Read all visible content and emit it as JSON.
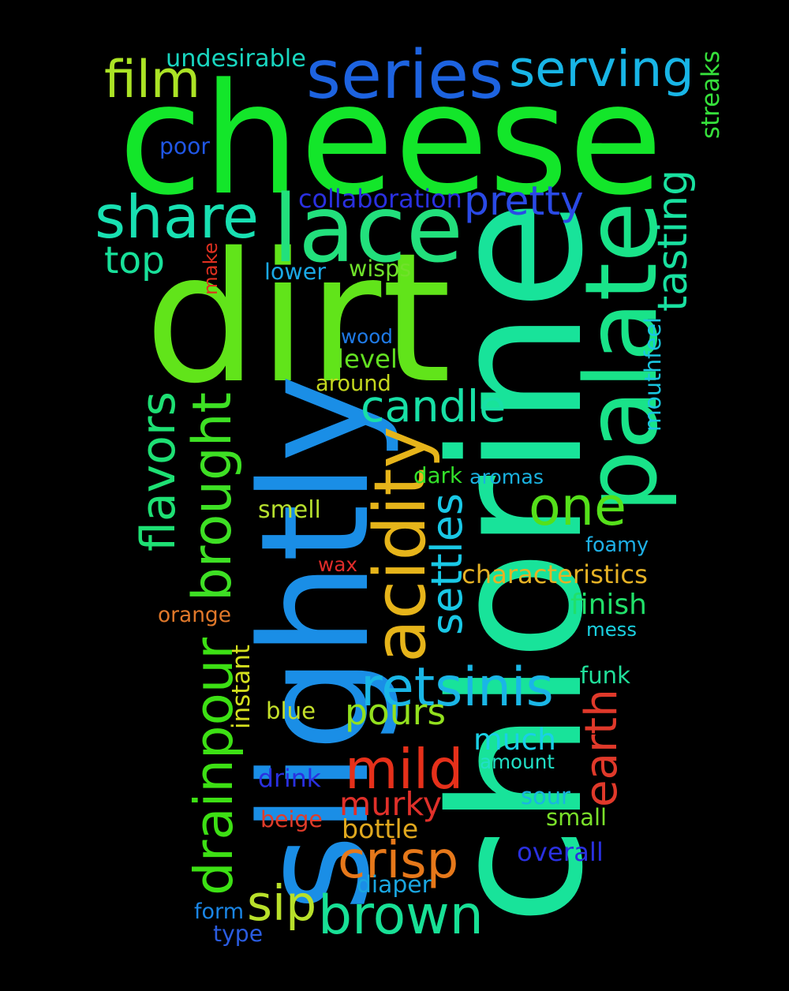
{
  "background": "#000000",
  "words": [
    {
      "text": "cheese",
      "color": "#13e62a"
    },
    {
      "text": "chlorine",
      "color": "#18e39a"
    },
    {
      "text": "dirt",
      "color": "#61e41a"
    },
    {
      "text": "slightly",
      "color": "#1a8ee6"
    },
    {
      "text": "palate",
      "color": "#19e389"
    },
    {
      "text": "lace",
      "color": "#22e07c"
    },
    {
      "text": "series",
      "color": "#1d63e0"
    },
    {
      "text": "serving",
      "color": "#18b5e6"
    },
    {
      "text": "share",
      "color": "#18e0b2"
    },
    {
      "text": "film",
      "color": "#abe325"
    },
    {
      "text": "undesirable",
      "color": "#19d6c0"
    },
    {
      "text": "streaks",
      "color": "#36e03b"
    },
    {
      "text": "poor",
      "color": "#2057e6"
    },
    {
      "text": "collaboration",
      "color": "#2a30e0"
    },
    {
      "text": "pretty",
      "color": "#2a4ae6"
    },
    {
      "text": "tasting",
      "color": "#19e0a0"
    },
    {
      "text": "top",
      "color": "#18e09a"
    },
    {
      "text": "make",
      "color": "#e03020"
    },
    {
      "text": "lower",
      "color": "#1aa8e6"
    },
    {
      "text": "wisps",
      "color": "#70e12a"
    },
    {
      "text": "mouthfeel",
      "color": "#19c6e0"
    },
    {
      "text": "wood",
      "color": "#1f7ae6"
    },
    {
      "text": "level",
      "color": "#62e021"
    },
    {
      "text": "around",
      "color": "#c4d71e"
    },
    {
      "text": "candle",
      "color": "#18e0a6"
    },
    {
      "text": "brought",
      "color": "#3ee024"
    },
    {
      "text": "flavors",
      "color": "#1ee074"
    },
    {
      "text": "acidity",
      "color": "#e6b41a"
    },
    {
      "text": "dark",
      "color": "#33e02a"
    },
    {
      "text": "aromas",
      "color": "#1ab2e0"
    },
    {
      "text": "one",
      "color": "#55e01a"
    },
    {
      "text": "settles",
      "color": "#19c8e6"
    },
    {
      "text": "smell",
      "color": "#b6e02e"
    },
    {
      "text": "foamy",
      "color": "#1eb0e6"
    },
    {
      "text": "wax",
      "color": "#e02c2a"
    },
    {
      "text": "characteristics",
      "color": "#e6b225"
    },
    {
      "text": "orange",
      "color": "#e0782a"
    },
    {
      "text": "finish",
      "color": "#21e06a"
    },
    {
      "text": "mess",
      "color": "#1ad0e0"
    },
    {
      "text": "drainpour",
      "color": "#3de014"
    },
    {
      "text": "instant",
      "color": "#d4e01e"
    },
    {
      "text": "retsinis",
      "color": "#1ab6e6"
    },
    {
      "text": "funk",
      "color": "#21e09a"
    },
    {
      "text": "pours",
      "color": "#92e01e"
    },
    {
      "text": "blue",
      "color": "#c4e02a"
    },
    {
      "text": "earth",
      "color": "#e0392a"
    },
    {
      "text": "much",
      "color": "#1ad0e6"
    },
    {
      "text": "mild",
      "color": "#e6301a"
    },
    {
      "text": "amount",
      "color": "#21e0c6"
    },
    {
      "text": "drink",
      "color": "#2a30e0"
    },
    {
      "text": "murky",
      "color": "#e0302a"
    },
    {
      "text": "sour",
      "color": "#1ab6e0"
    },
    {
      "text": "small",
      "color": "#7ae02a"
    },
    {
      "text": "beige",
      "color": "#e03c2a"
    },
    {
      "text": "bottle",
      "color": "#e0a81e"
    },
    {
      "text": "overall",
      "color": "#2a30e0"
    },
    {
      "text": "crisp",
      "color": "#e6781a"
    },
    {
      "text": "diaper",
      "color": "#1aa6e0"
    },
    {
      "text": "sip",
      "color": "#b8e02a"
    },
    {
      "text": "brown",
      "color": "#18e096"
    },
    {
      "text": "form",
      "color": "#1a86e6"
    },
    {
      "text": "type",
      "color": "#2a5ce0"
    }
  ]
}
